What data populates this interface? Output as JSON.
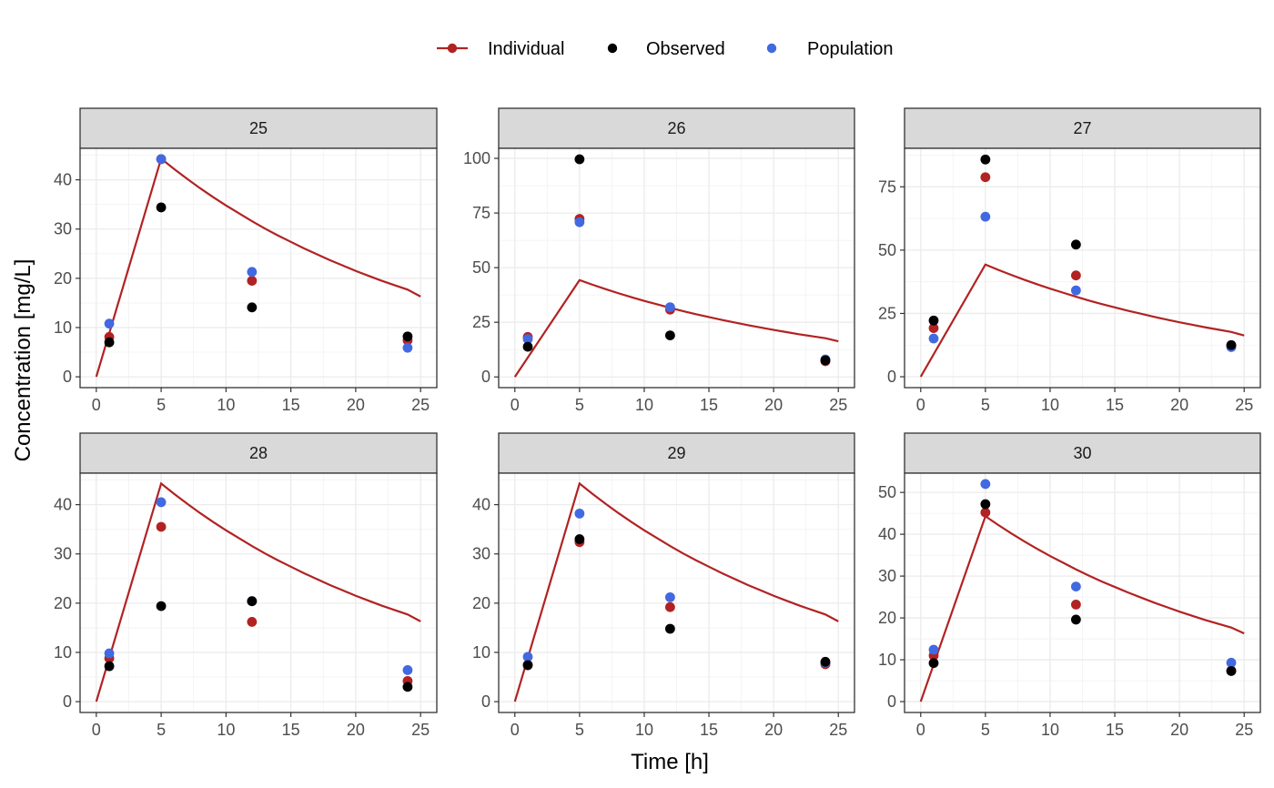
{
  "chart_data": {
    "type": "scatter",
    "x_label": "Time [h]",
    "y_label": "Concentration [mg/L]",
    "legend": {
      "position": "top",
      "entries": [
        {
          "key": "individual",
          "label": "Individual",
          "color": "#b22222",
          "glyph": "line-point"
        },
        {
          "key": "observed",
          "label": "Observed",
          "color": "#000000",
          "glyph": "point"
        },
        {
          "key": "population",
          "label": "Population",
          "color": "#4169e1",
          "glyph": "point"
        }
      ]
    },
    "colors": {
      "individual": "#b22222",
      "observed": "#000000",
      "population": "#4169e1"
    },
    "x_range": [
      -1.25,
      26.25
    ],
    "x_ticks": [
      0,
      5,
      10,
      15,
      20,
      25
    ],
    "curve": {
      "name": "Individual",
      "t": [
        0,
        5,
        6,
        7,
        8,
        9,
        10,
        11,
        12,
        13,
        14,
        15,
        16,
        17,
        18,
        19,
        20,
        21,
        22,
        23,
        24,
        25
      ],
      "c": [
        0,
        44.3,
        42.2,
        40.2,
        38.3,
        36.5,
        34.8,
        33.2,
        31.6,
        30.1,
        28.7,
        27.4,
        26.1,
        24.9,
        23.7,
        22.6,
        21.5,
        20.5,
        19.5,
        18.6,
        17.7,
        16.3
      ]
    },
    "panels": [
      {
        "id": "25",
        "y_range": [
          -2.2,
          46.4
        ],
        "y_ticks": [
          0,
          10,
          20,
          30,
          40
        ],
        "points": {
          "individual": [
            [
              1,
              8.1
            ],
            [
              5,
              44.2
            ],
            [
              12,
              19.5
            ],
            [
              24,
              7.4
            ]
          ],
          "population": [
            [
              1,
              10.8
            ],
            [
              5,
              44.2
            ],
            [
              12,
              21.3
            ],
            [
              24,
              5.9
            ]
          ],
          "observed": [
            [
              1,
              7.0
            ],
            [
              5,
              34.4
            ],
            [
              12,
              14.1
            ],
            [
              24,
              8.2
            ]
          ]
        }
      },
      {
        "id": "26",
        "y_range": [
          -4.9,
          104.6
        ],
        "y_ticks": [
          0,
          25,
          50,
          75,
          100
        ],
        "points": {
          "individual": [
            [
              1,
              18.3
            ],
            [
              5,
              72.3
            ],
            [
              12,
              30.8
            ],
            [
              24,
              7.2
            ]
          ],
          "population": [
            [
              1,
              17.3
            ],
            [
              5,
              70.8
            ],
            [
              12,
              31.9
            ],
            [
              24,
              8.0
            ]
          ],
          "observed": [
            [
              1,
              13.8
            ],
            [
              5,
              99.6
            ],
            [
              12,
              19.0
            ],
            [
              24,
              7.6
            ]
          ]
        }
      },
      {
        "id": "27",
        "y_range": [
          -4.3,
          90.2
        ],
        "y_ticks": [
          0,
          25,
          50,
          75
        ],
        "points": {
          "individual": [
            [
              1,
              19.2
            ],
            [
              5,
              78.8
            ],
            [
              12,
              40.0
            ],
            [
              24,
              12.3
            ]
          ],
          "population": [
            [
              1,
              15.1
            ],
            [
              5,
              63.2
            ],
            [
              12,
              34.1
            ],
            [
              24,
              11.7
            ]
          ],
          "observed": [
            [
              1,
              22.2
            ],
            [
              5,
              85.8
            ],
            [
              12,
              52.2
            ],
            [
              24,
              12.5
            ]
          ]
        }
      },
      {
        "id": "28",
        "y_range": [
          -2.2,
          46.4
        ],
        "y_ticks": [
          0,
          10,
          20,
          30,
          40
        ],
        "points": {
          "individual": [
            [
              1,
              8.8
            ],
            [
              5,
              35.5
            ],
            [
              12,
              16.2
            ],
            [
              24,
              4.2
            ]
          ],
          "population": [
            [
              1,
              9.8
            ],
            [
              5,
              40.5
            ],
            [
              12,
              20.4
            ],
            [
              24,
              6.4
            ]
          ],
          "observed": [
            [
              1,
              7.2
            ],
            [
              5,
              19.4
            ],
            [
              12,
              20.4
            ],
            [
              24,
              3.0
            ]
          ]
        }
      },
      {
        "id": "29",
        "y_range": [
          -2.2,
          46.4
        ],
        "y_ticks": [
          0,
          10,
          20,
          30,
          40
        ],
        "points": {
          "individual": [
            [
              1,
              7.5
            ],
            [
              5,
              32.4
            ],
            [
              12,
              19.2
            ],
            [
              24,
              7.6
            ]
          ],
          "population": [
            [
              1,
              9.1
            ],
            [
              5,
              38.2
            ],
            [
              12,
              21.2
            ],
            [
              24,
              7.9
            ]
          ],
          "observed": [
            [
              1,
              7.4
            ],
            [
              5,
              33.0
            ],
            [
              12,
              14.8
            ],
            [
              24,
              8.1
            ]
          ]
        }
      },
      {
        "id": "30",
        "y_range": [
          -2.6,
          54.6
        ],
        "y_ticks": [
          0,
          10,
          20,
          30,
          40,
          50
        ],
        "points": {
          "individual": [
            [
              1,
              11.0
            ],
            [
              5,
              45.2
            ],
            [
              12,
              23.2
            ],
            [
              24,
              7.4
            ]
          ],
          "population": [
            [
              1,
              12.4
            ],
            [
              5,
              52.0
            ],
            [
              12,
              27.5
            ],
            [
              24,
              9.3
            ]
          ],
          "observed": [
            [
              1,
              9.2
            ],
            [
              5,
              47.2
            ],
            [
              12,
              19.6
            ],
            [
              24,
              7.3
            ]
          ]
        }
      }
    ]
  }
}
